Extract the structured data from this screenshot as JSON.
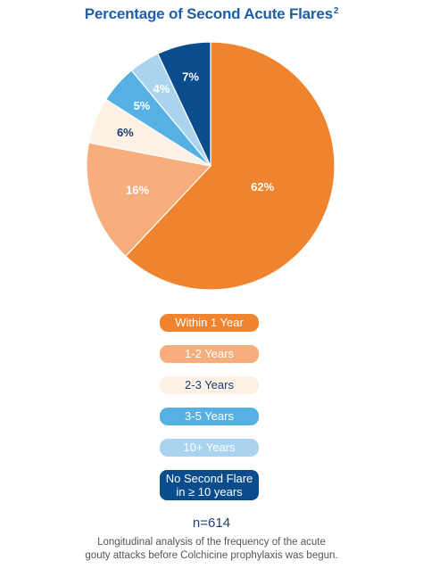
{
  "title": "Percentage of Second Acute Flares",
  "title_superscript": "2",
  "chart_data": {
    "type": "pie",
    "title": "Percentage of Second Acute Flares",
    "categories": [
      "Within 1 Year",
      "1-2 Years",
      "2-3 Years",
      "3-5 Years",
      "10+ Years",
      "No Second Flare in ≥ 10 years"
    ],
    "values": [
      62,
      16,
      6,
      5,
      4,
      7
    ],
    "labels": [
      "62%",
      "16%",
      "6%",
      "5%",
      "4%",
      "7%"
    ],
    "colors": [
      "#f0832e",
      "#f7ad7c",
      "#fdf0e4",
      "#55b1e3",
      "#a9d3ef",
      "#0b4d8c"
    ],
    "label_colors": [
      "#ffffff",
      "#ffffff",
      "#1b3f73",
      "#ffffff",
      "#ffffff",
      "#ffffff"
    ],
    "legend_placement": "bottom"
  },
  "legend": [
    {
      "line1": "Within 1 Year",
      "line2": "",
      "color": "#f0832e",
      "text_color": "#ffffff"
    },
    {
      "line1": "1-2 Years",
      "line2": "",
      "color": "#f7ad7c",
      "text_color": "#ffffff"
    },
    {
      "line1": "2-3 Years",
      "line2": "",
      "color": "#fdf0e4",
      "text_color": "#1b3f73"
    },
    {
      "line1": "3-5 Years",
      "line2": "",
      "color": "#55b1e3",
      "text_color": "#ffffff"
    },
    {
      "line1": "10+ Years",
      "line2": "",
      "color": "#a9d3ef",
      "text_color": "#ffffff"
    },
    {
      "line1": "No Second Flare",
      "line2": "in ≥ 10 years",
      "color": "#0b4d8c",
      "text_color": "#ffffff"
    }
  ],
  "sample_size": "n=614",
  "footnote": {
    "line1": "Longitudinal analysis of the frequency of the acute",
    "line2": "gouty attacks before Colchicine prophylaxis was begun."
  }
}
